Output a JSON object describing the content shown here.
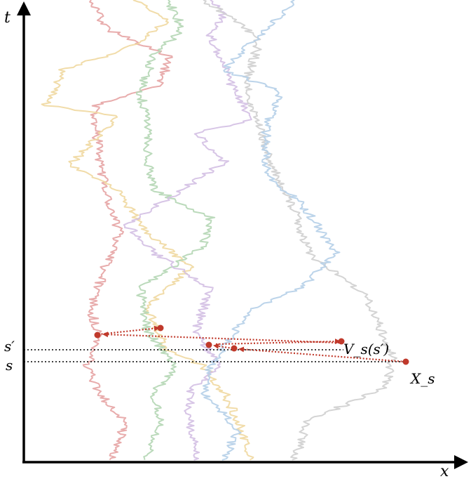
{
  "axes": {
    "x_label": "x",
    "t_label": "t",
    "marker_s_prime": "s′",
    "marker_s": "s"
  },
  "annotations": {
    "v_label": "V_s(s′)",
    "x_label": "X_s"
  },
  "colors": {
    "red": "#e6a3a3",
    "yellow": "#efd8a0",
    "green": "#b4d6b4",
    "purple": "#d3bfe3",
    "gray": "#cfcfcf",
    "blue": "#b5cfe8",
    "arrow": "#c0392b"
  }
}
